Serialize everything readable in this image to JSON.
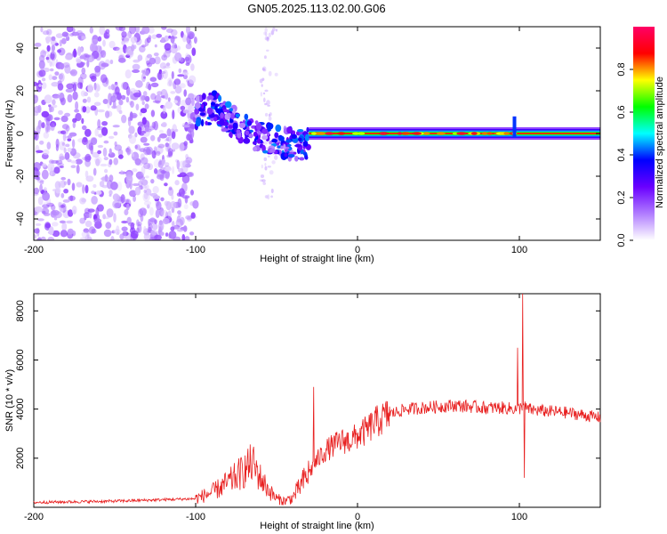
{
  "title": "GN05.2025.113.02.00.G06",
  "chart_data": [
    {
      "type": "heatmap",
      "xlabel": "Height of straight line (km)",
      "ylabel": "Frequency (Hz)",
      "xlim": [
        -200,
        150
      ],
      "ylim": [
        -50,
        50
      ],
      "xticks": [
        -200,
        -100,
        0,
        100
      ],
      "xtick_labels": [
        "-200",
        "-100",
        "0",
        "100"
      ],
      "yticks": [
        -40,
        -20,
        0,
        20,
        40
      ],
      "ytick_labels": [
        "-40",
        "-20",
        "0",
        "20",
        "40"
      ],
      "colorbar": {
        "label": "Normalized spectral amplitude",
        "range": [
          0,
          1
        ],
        "ticks": [
          0,
          0.2,
          0.4,
          0.6,
          0.8
        ],
        "tick_labels": [
          "0.0",
          "0.2",
          "0.4",
          "0.6",
          "0.8"
        ],
        "colors": [
          "#ffffff",
          "#b07cff",
          "#6a00ff",
          "#0000ff",
          "#00ffff",
          "#00ff00",
          "#ffff00",
          "#ff0000",
          "#ff0066"
        ]
      },
      "features": [
        {
          "name": "noise",
          "x_range": [
            -200,
            -100
          ],
          "y_range": [
            -50,
            50
          ],
          "level": 0.12
        },
        {
          "name": "scattered-noise",
          "x_range": [
            -60,
            -50
          ],
          "y_range": [
            -30,
            50
          ],
          "level": 0.05
        },
        {
          "name": "transition",
          "x_range": [
            -100,
            -30
          ],
          "center_freq": [
            10,
            12,
            5,
            0,
            -3,
            -5,
            -5
          ],
          "level": 0.3
        },
        {
          "name": "signal-line",
          "x_range": [
            -30,
            150
          ],
          "center_freq": 0,
          "level": 0.6
        },
        {
          "name": "spike",
          "x": 97,
          "y_range": [
            -2,
            8
          ],
          "level": 0.4
        }
      ]
    },
    {
      "type": "line",
      "xlabel": "Height of straight line (km)",
      "ylabel": "SNR (10 * v/v)",
      "xlim": [
        -200,
        150
      ],
      "ylim": [
        0,
        8700
      ],
      "xticks": [
        -200,
        -100,
        0,
        100
      ],
      "xtick_labels": [
        "-200",
        "-100",
        "0",
        "100"
      ],
      "yticks": [
        2000,
        4000,
        6000,
        8000
      ],
      "ytick_labels": [
        "2000",
        "4000",
        "6000",
        "8000"
      ],
      "color": "#e82020",
      "series": [
        {
          "name": "SNR",
          "x": [
            -200,
            -150,
            -100,
            -90,
            -80,
            -70,
            -65,
            -60,
            -55,
            -50,
            -45,
            -40,
            -35,
            -30,
            -25,
            -20,
            -15,
            -10,
            -5,
            0,
            5,
            10,
            15,
            20,
            30,
            40,
            50,
            60,
            70,
            80,
            90,
            98,
            100,
            102,
            103,
            105,
            110,
            120,
            130,
            140,
            150
          ],
          "y": [
            200,
            250,
            350,
            600,
            1000,
            1500,
            1800,
            1200,
            700,
            350,
            250,
            400,
            900,
            1400,
            1900,
            2300,
            2500,
            2700,
            2700,
            2900,
            3100,
            3400,
            3600,
            3800,
            4000,
            4050,
            4100,
            4150,
            4100,
            4050,
            4050,
            4000,
            4000,
            4200,
            4100,
            4000,
            3950,
            3900,
            3850,
            3750,
            3650
          ],
          "spikes": [
            {
              "x": -27,
              "y": 4900
            },
            {
              "x": 99,
              "y": 6500
            },
            {
              "x": 102,
              "y": 8700
            },
            {
              "x": 103,
              "y": 1200
            }
          ]
        }
      ]
    }
  ]
}
